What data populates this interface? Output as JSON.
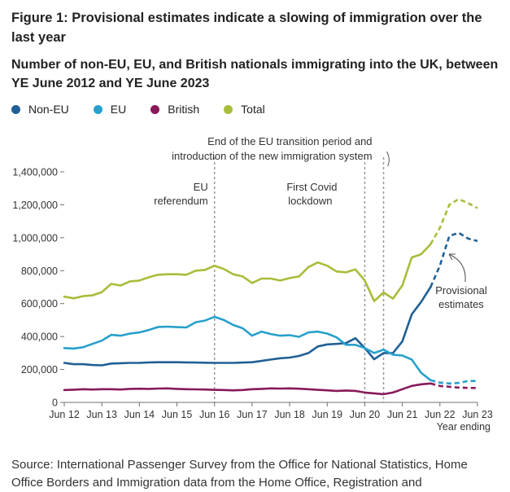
{
  "figure_title": "Figure 1: Provisional estimates indicate a slowing of immigration over the last year",
  "source_text": "Source: International Passenger Survey from the Office for National Statistics, Home Office Borders and Immigration data from the Home Office, Registration and",
  "colors": {
    "Non-EU": "#206095",
    "EU": "#27A0CC",
    "British": "#871A5B",
    "Total": "#A8BD3A",
    "axis": "#707070",
    "grid": "#d9d9d9",
    "marker": "#999999"
  },
  "chart_data": {
    "type": "line",
    "title": "Number of non-EU, EU, and British nationals immigrating into the UK, between YE June 2012 and YE June 2023",
    "xlabel": "Year ending",
    "ylabel": "",
    "ylim": [
      0,
      1400000
    ],
    "yticks": [
      0,
      200000,
      400000,
      600000,
      800000,
      1000000,
      1200000,
      1400000
    ],
    "ytick_labels": [
      "0",
      "200,000",
      "400,000",
      "600,000",
      "800,000",
      "1,000,000",
      "1,200,000",
      "1,400,000"
    ],
    "xlim": [
      2012.5,
      2023.5
    ],
    "xticks": [
      2012.5,
      2013.5,
      2014.5,
      2015.5,
      2016.5,
      2017.5,
      2018.5,
      2019.5,
      2020.5,
      2021.5,
      2022.5,
      2023.5
    ],
    "xtick_labels": [
      "Jun 12",
      "Jun 13",
      "Jun 14",
      "Jun 15",
      "Jun 16",
      "Jun 17",
      "Jun 18",
      "Jun 19",
      "Jun 20",
      "Jun 21",
      "Jun 22",
      "Jun 23"
    ],
    "grid": false,
    "legend_position": "top-left",
    "x": [
      2012.5,
      2012.75,
      2013.0,
      2013.25,
      2013.5,
      2013.75,
      2014.0,
      2014.25,
      2014.5,
      2014.75,
      2015.0,
      2015.25,
      2015.5,
      2015.75,
      2016.0,
      2016.25,
      2016.5,
      2016.75,
      2017.0,
      2017.25,
      2017.5,
      2017.75,
      2018.0,
      2018.25,
      2018.5,
      2018.75,
      2019.0,
      2019.25,
      2019.5,
      2019.75,
      2020.0,
      2020.25,
      2020.5,
      2020.75,
      2021.0,
      2021.25,
      2021.5,
      2021.75,
      2022.0,
      2022.25,
      2022.5,
      2022.75,
      2023.0,
      2023.25,
      2023.5
    ],
    "provisional_from_x": 2022.25,
    "series": [
      {
        "name": "Non-EU",
        "values": [
          240000,
          232000,
          232000,
          227000,
          225000,
          236000,
          238000,
          240000,
          240000,
          243000,
          244000,
          244000,
          244000,
          243000,
          242000,
          241000,
          240000,
          240000,
          240000,
          242000,
          244000,
          252000,
          260000,
          268000,
          272000,
          282000,
          300000,
          340000,
          352000,
          355000,
          360000,
          390000,
          330000,
          262000,
          300000,
          300000,
          370000,
          535000,
          610000,
          700000,
          830000,
          1010000,
          1030000,
          995000,
          980000
        ]
      },
      {
        "name": "EU",
        "values": [
          330000,
          327000,
          335000,
          355000,
          375000,
          410000,
          405000,
          418000,
          425000,
          440000,
          458000,
          460000,
          457000,
          455000,
          487000,
          497000,
          520000,
          500000,
          470000,
          450000,
          405000,
          430000,
          415000,
          405000,
          408000,
          398000,
          425000,
          430000,
          418000,
          395000,
          350000,
          350000,
          330000,
          300000,
          320000,
          290000,
          285000,
          260000,
          180000,
          135000,
          120000,
          115000,
          118000,
          130000,
          130000
        ]
      },
      {
        "name": "British",
        "values": [
          75000,
          77000,
          80000,
          78000,
          80000,
          80000,
          78000,
          82000,
          83000,
          82000,
          84000,
          85000,
          82000,
          80000,
          79000,
          78000,
          76000,
          75000,
          73000,
          75000,
          80000,
          82000,
          85000,
          84000,
          85000,
          83000,
          80000,
          76000,
          73000,
          70000,
          72000,
          70000,
          60000,
          55000,
          50000,
          60000,
          80000,
          100000,
          110000,
          115000,
          100000,
          95000,
          90000,
          88000,
          87000
        ]
      },
      {
        "name": "Total",
        "values": [
          642000,
          632000,
          645000,
          650000,
          670000,
          720000,
          710000,
          735000,
          740000,
          760000,
          775000,
          778000,
          778000,
          775000,
          800000,
          805000,
          830000,
          810000,
          778000,
          765000,
          725000,
          752000,
          752000,
          740000,
          755000,
          765000,
          822000,
          850000,
          830000,
          795000,
          790000,
          808000,
          740000,
          615000,
          668000,
          630000,
          710000,
          880000,
          900000,
          960000,
          1060000,
          1200000,
          1235000,
          1210000,
          1180000
        ]
      }
    ],
    "annotations": [
      {
        "x": 2016.5,
        "text_lines": [
          "EU",
          "referendum"
        ]
      },
      {
        "x": 2020.5,
        "text_lines": [
          "First Covid",
          "lockdown"
        ]
      },
      {
        "x": 2021.0,
        "text_lines": [
          "End of the EU transition period and",
          "introduction of the new immigration system"
        ]
      }
    ],
    "callout": {
      "text_lines": [
        "Provisional",
        "estimates"
      ]
    }
  }
}
